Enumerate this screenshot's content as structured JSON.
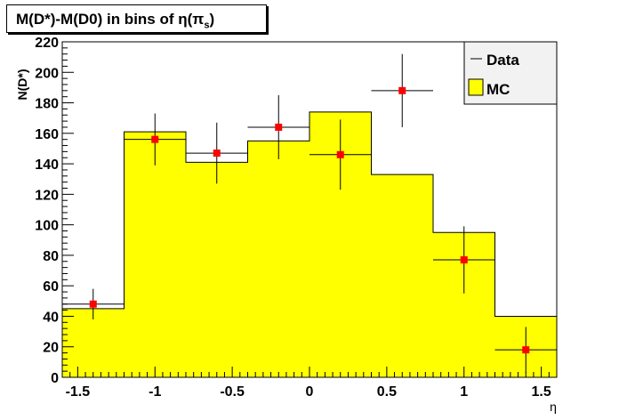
{
  "chart_data": {
    "type": "bar",
    "title": "M(D*)-M(D0) in bins of η(π_s)",
    "title_parts": {
      "main": "M(D*)-M(D0) in bins of η(π",
      "sub": "s",
      "close": ")"
    },
    "xlabel": "η",
    "ylabel": "N(D*)",
    "xlim": [
      -1.6,
      1.6
    ],
    "ylim": [
      0,
      220
    ],
    "x_ticks": [
      -1.5,
      -1,
      -0.5,
      0,
      0.5,
      1,
      1.5
    ],
    "x_tick_labels": [
      "-1.5",
      "-1",
      "-0.5",
      "0",
      "0.5",
      "1",
      "1.5"
    ],
    "y_ticks": [
      0,
      20,
      40,
      60,
      80,
      100,
      120,
      140,
      160,
      180,
      200,
      220
    ],
    "y_tick_labels": [
      "0",
      "20",
      "40",
      "60",
      "80",
      "100",
      "120",
      "140",
      "160",
      "180",
      "200",
      "220"
    ],
    "legend_position": "top-right",
    "series": [
      {
        "name": "MC",
        "kind": "histogram",
        "color": "#ffff00",
        "bin_edges": [
          -1.6,
          -1.2,
          -0.8,
          -0.4,
          0.0,
          0.4,
          0.8,
          1.2,
          1.6
        ],
        "values": [
          45,
          161,
          141,
          155,
          174,
          133,
          95,
          40
        ]
      },
      {
        "name": "Data",
        "kind": "points-with-errors",
        "color": "#ff0000",
        "x": [
          -1.4,
          -1.0,
          -0.6,
          -0.2,
          0.2,
          0.6,
          1.0,
          1.4
        ],
        "x_err": [
          0.2,
          0.2,
          0.2,
          0.2,
          0.2,
          0.2,
          0.2,
          0.2
        ],
        "y": [
          48,
          156,
          147,
          164,
          146,
          188,
          77,
          18
        ],
        "y_err": [
          10,
          17,
          20,
          21,
          23,
          24,
          22,
          15
        ]
      }
    ]
  }
}
